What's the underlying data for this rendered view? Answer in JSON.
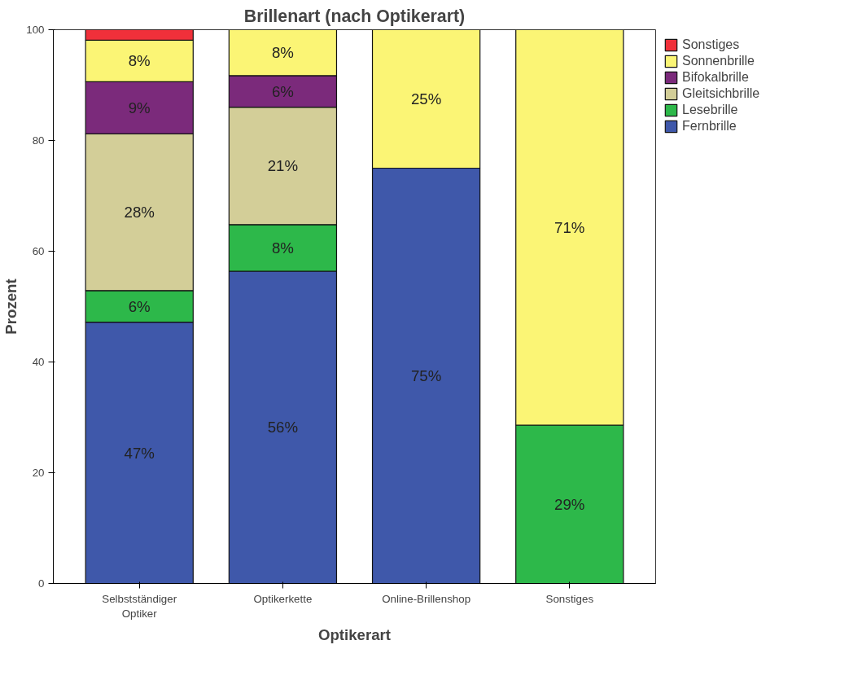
{
  "chart_data": {
    "type": "bar",
    "stacked": true,
    "title": "Brillenart (nach Optikerart)",
    "xlabel": "Optikerart",
    "ylabel": "Prozent",
    "categories": [
      "Selbstständiger\nOptiker",
      "Optikerkette",
      "Online-Brillenshop",
      "Sonstiges"
    ],
    "series": [
      {
        "name": "Fernbrille",
        "color": "#3f58aa",
        "values": [
          47.2,
          56.4,
          75,
          null
        ],
        "value_labels": [
          "47%",
          "56%",
          "75%",
          null
        ]
      },
      {
        "name": "Lesebrille",
        "color": "#2db84a",
        "values": [
          5.7,
          8.4,
          null,
          28.6
        ],
        "value_labels": [
          "6%",
          "8%",
          null,
          "29%"
        ]
      },
      {
        "name": "Gleitsichbrille",
        "color": "#d3ce98",
        "values": [
          28.3,
          21.2,
          null,
          null
        ],
        "value_labels": [
          "28%",
          "21%",
          null,
          null
        ]
      },
      {
        "name": "Bifokalbrille",
        "color": "#7b2a7b",
        "values": [
          9.4,
          5.7,
          null,
          null
        ],
        "value_labels": [
          "9%",
          "6%",
          null,
          null
        ]
      },
      {
        "name": "Sonnenbrille",
        "color": "#fbf575",
        "values": [
          7.5,
          8.3,
          25,
          71.4
        ],
        "value_labels": [
          "8%",
          "8%",
          "25%",
          "71%"
        ]
      },
      {
        "name": "Sonstiges",
        "color": "#f0303a",
        "values": [
          1.9,
          null,
          null,
          null
        ],
        "value_labels": [
          null,
          null,
          null,
          null
        ]
      }
    ],
    "ylim": [
      0,
      100
    ],
    "yticks": [
      0,
      20,
      40,
      60,
      80,
      100
    ],
    "grid": false,
    "legend": "right"
  }
}
